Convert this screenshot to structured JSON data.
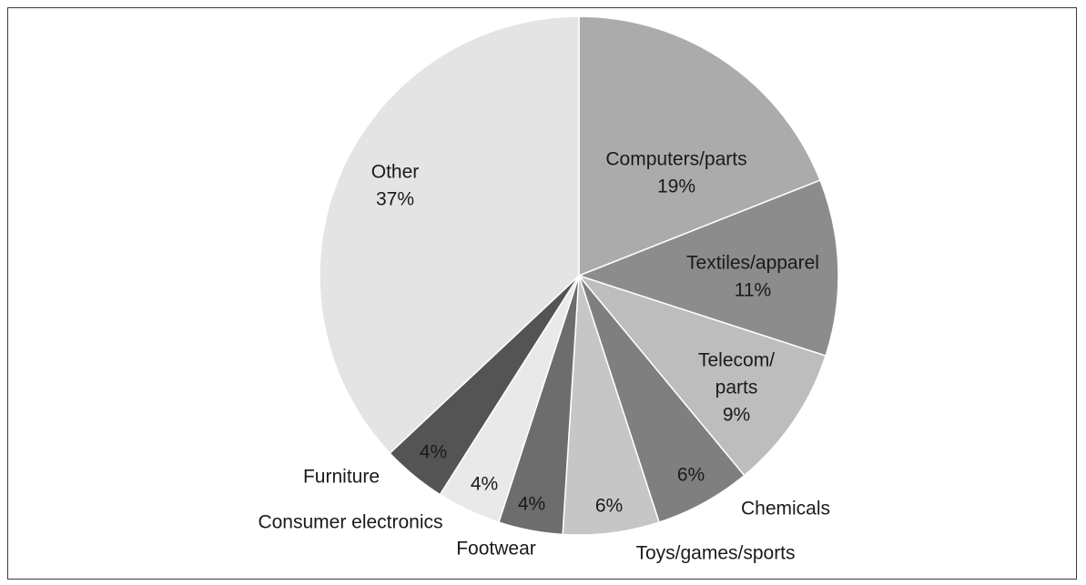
{
  "chart_data": {
    "type": "pie",
    "title": "",
    "slices": [
      {
        "label": "Computers/parts",
        "value": 19,
        "value_label": "19%",
        "color": "#ababab"
      },
      {
        "label": "Textiles/apparel",
        "value": 11,
        "value_label": "11%",
        "color": "#8c8c8c"
      },
      {
        "label": "Telecom/ parts",
        "value": 9,
        "value_label": "9%",
        "color": "#bdbdbd"
      },
      {
        "label": "Chemicals",
        "value": 6,
        "value_label": "6%",
        "color": "#7f7f7f"
      },
      {
        "label": "Toys/games/sports",
        "value": 6,
        "value_label": "6%",
        "color": "#c6c6c6"
      },
      {
        "label": "Footwear",
        "value": 4,
        "value_label": "4%",
        "color": "#6d6d6d"
      },
      {
        "label": "Consumer electronics",
        "value": 4,
        "value_label": "4%",
        "color": "#e9e9e9"
      },
      {
        "label": "Furniture",
        "value": 4,
        "value_label": "4%",
        "color": "#545454"
      },
      {
        "label": "Other",
        "value": 37,
        "value_label": "37%",
        "color": "#e4e4e5"
      }
    ],
    "start_angle": "12 o'clock",
    "direction": "clockwise",
    "slice_border_color": "#ffffff"
  }
}
